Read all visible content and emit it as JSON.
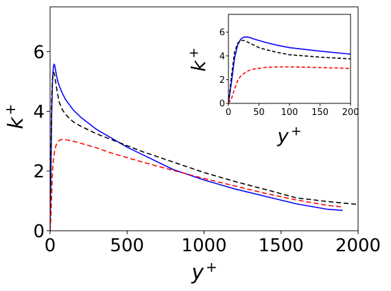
{
  "chart_data": [
    {
      "type": "line",
      "role": "main",
      "xlabel": "y",
      "xlabel_sup": "+",
      "ylabel": "k",
      "ylabel_sup": "+",
      "xlim": [
        0,
        2000
      ],
      "ylim": [
        0,
        7.5
      ],
      "xticks": [
        0,
        500,
        1000,
        1500,
        2000
      ],
      "yticks": [
        0,
        2,
        4,
        6
      ],
      "xtick_labels": [
        "0",
        "500",
        "1000",
        "1500",
        "2000"
      ],
      "ytick_labels": [
        "0",
        "2",
        "4",
        "6"
      ],
      "grid": false,
      "legend": "none",
      "series": [
        {
          "color": "#0000ff",
          "style": "solid",
          "x": [
            0,
            5,
            10,
            15,
            20,
            25,
            30,
            35,
            40,
            50,
            60,
            80,
            100,
            150,
            200,
            300,
            400,
            500,
            600,
            800,
            1000,
            1200,
            1400,
            1600,
            1800,
            1900
          ],
          "y": [
            0,
            1.8,
            3.8,
            4.9,
            5.4,
            5.58,
            5.55,
            5.4,
            5.25,
            5.0,
            4.85,
            4.6,
            4.4,
            4.05,
            3.8,
            3.4,
            3.1,
            2.8,
            2.55,
            2.05,
            1.7,
            1.4,
            1.15,
            0.9,
            0.72,
            0.68
          ]
        },
        {
          "color": "#000000",
          "style": "dashed",
          "x": [
            0,
            5,
            10,
            15,
            20,
            25,
            30,
            40,
            50,
            60,
            80,
            100,
            150,
            200,
            300,
            400,
            500,
            600,
            800,
            1000,
            1200,
            1400,
            1600,
            1800,
            2000
          ],
          "y": [
            0,
            2.3,
            4.3,
            5.05,
            5.3,
            5.3,
            5.2,
            4.85,
            4.55,
            4.3,
            4.05,
            3.9,
            3.65,
            3.5,
            3.25,
            3.05,
            2.85,
            2.65,
            2.3,
            1.95,
            1.65,
            1.38,
            1.1,
            0.98,
            0.88
          ]
        },
        {
          "color": "#ff0000",
          "style": "dashed",
          "x": [
            0,
            5,
            10,
            15,
            20,
            30,
            40,
            60,
            80,
            100,
            150,
            200,
            300,
            400,
            500,
            600,
            800,
            1000,
            1200,
            1400,
            1600,
            1800,
            1900
          ],
          "y": [
            0,
            0.4,
            1.2,
            1.9,
            2.3,
            2.7,
            2.88,
            3.03,
            3.06,
            3.05,
            3.0,
            2.93,
            2.78,
            2.6,
            2.45,
            2.3,
            2.02,
            1.75,
            1.5,
            1.25,
            1.03,
            0.85,
            0.8
          ]
        }
      ]
    },
    {
      "type": "line",
      "role": "inset",
      "xlabel": "y",
      "xlabel_sup": "+",
      "ylabel": "k",
      "ylabel_sup": "+",
      "xlim": [
        0,
        200
      ],
      "ylim": [
        0,
        7.5
      ],
      "xticks": [
        0,
        50,
        100,
        150,
        200
      ],
      "yticks": [
        0,
        2,
        4,
        6
      ],
      "xtick_labels": [
        "0",
        "50",
        "100",
        "150",
        "200"
      ],
      "ytick_labels": [
        "0",
        "2",
        "4",
        "6"
      ],
      "grid": false,
      "legend": "none",
      "series": [
        {
          "color": "#0000ff",
          "style": "solid",
          "x": [
            0,
            5,
            10,
            15,
            20,
            25,
            30,
            35,
            40,
            50,
            60,
            80,
            100,
            150,
            200
          ],
          "y": [
            0,
            1.8,
            3.8,
            4.9,
            5.4,
            5.58,
            5.6,
            5.55,
            5.45,
            5.3,
            5.15,
            4.9,
            4.7,
            4.4,
            4.15
          ]
        },
        {
          "color": "#000000",
          "style": "dashed",
          "x": [
            0,
            5,
            10,
            15,
            20,
            25,
            30,
            40,
            50,
            60,
            80,
            100,
            150,
            200
          ],
          "y": [
            0,
            2.3,
            4.3,
            5.05,
            5.3,
            5.3,
            5.2,
            4.95,
            4.7,
            4.55,
            4.3,
            4.1,
            3.9,
            3.75
          ]
        },
        {
          "color": "#ff0000",
          "style": "dashed",
          "x": [
            0,
            5,
            10,
            15,
            20,
            30,
            40,
            60,
            80,
            100,
            150,
            200
          ],
          "y": [
            0,
            0.4,
            1.2,
            1.9,
            2.3,
            2.7,
            2.88,
            3.03,
            3.07,
            3.08,
            3.02,
            2.95
          ]
        }
      ]
    }
  ]
}
